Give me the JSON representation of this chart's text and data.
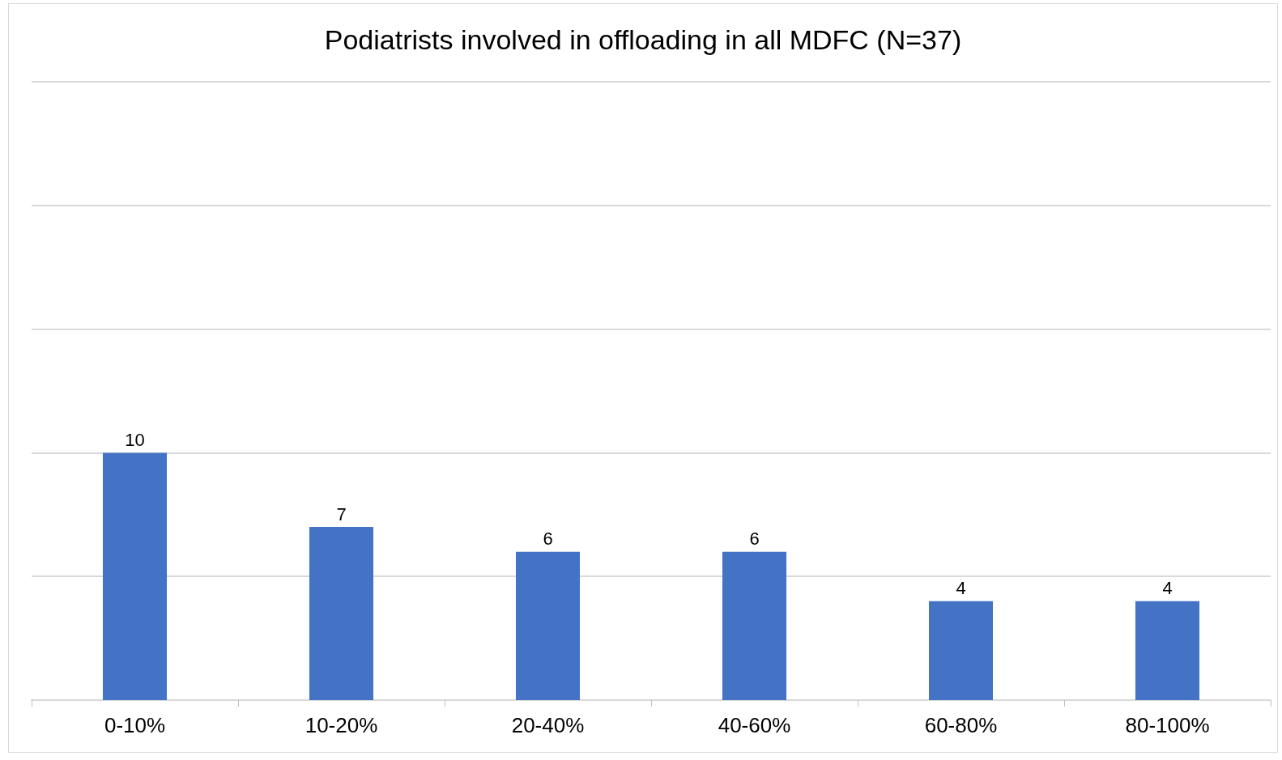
{
  "chart_data": {
    "type": "bar",
    "title": "Podiatrists involved in offloading in all MDFC (N=37)",
    "categories": [
      "0-10%",
      "10-20%",
      "20-40%",
      "40-60%",
      "60-80%",
      "80-100%"
    ],
    "values": [
      10,
      7,
      6,
      6,
      4,
      4
    ],
    "color": "#4472c4",
    "ylim": [
      0,
      25
    ],
    "yticks": [
      0,
      5,
      10,
      15,
      20,
      25
    ],
    "grid": "y",
    "tick_labels": "x",
    "data_labels": true
  }
}
